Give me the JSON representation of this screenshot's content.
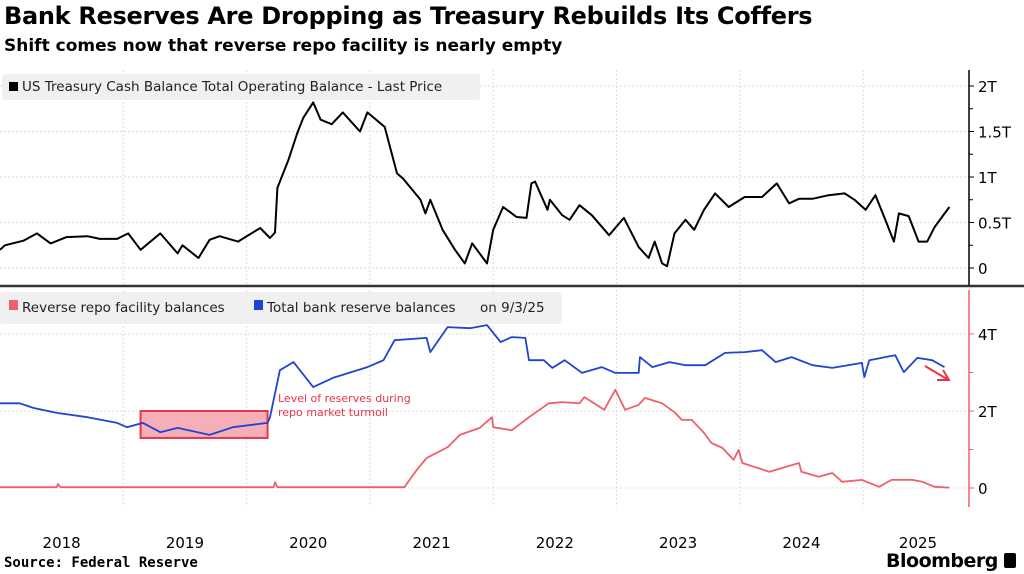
{
  "title": "Bank Reserves Are Dropping as Treasury Rebuilds Its Coffers",
  "subtitle": "Shift comes now that reverse repo facility is nearly empty",
  "source": "Source: Federal Reserve",
  "brand": "Bloomberg",
  "chart_data": [
    {
      "type": "line",
      "x_unit": "year",
      "xlim": [
        2018,
        2025.8
      ],
      "ylim": [
        -0.1,
        2.2
      ],
      "y_ticks": [
        0,
        0.5,
        1,
        1.5,
        2
      ],
      "y_tick_labels": [
        "0",
        "0.5T",
        "1T",
        "1.5T",
        "2T"
      ],
      "y_axis_side": "right",
      "grid": true,
      "legend_position": "top-left",
      "series": [
        {
          "name": "US Treasury Cash Balance Total Operating Balance - Last Price",
          "color": "#000000",
          "x": [
            2018.0,
            2018.04,
            2018.19,
            2018.3,
            2018.41,
            2018.54,
            2018.71,
            2018.81,
            2018.95,
            2019.04,
            2019.14,
            2019.3,
            2019.44,
            2019.48,
            2019.61,
            2019.7,
            2019.78,
            2019.93,
            2020.11,
            2020.19,
            2020.23,
            2020.25,
            2020.34,
            2020.41,
            2020.46,
            2020.54,
            2020.6,
            2020.69,
            2020.78,
            2020.92,
            2020.98,
            2021.12,
            2021.22,
            2021.27,
            2021.41,
            2021.45,
            2021.49,
            2021.59,
            2021.69,
            2021.77,
            2021.83,
            2021.95,
            2022.0,
            2022.08,
            2022.19,
            2022.27,
            2022.31,
            2022.34,
            2022.44,
            2022.46,
            2022.56,
            2022.62,
            2022.7,
            2022.8,
            2022.94,
            2023.06,
            2023.18,
            2023.26,
            2023.31,
            2023.37,
            2023.41,
            2023.47,
            2023.56,
            2023.63,
            2023.71,
            2023.8,
            2023.91,
            2024.04,
            2024.18,
            2024.3,
            2024.4,
            2024.48,
            2024.59,
            2024.72,
            2024.85,
            2024.93,
            2025.02,
            2025.1,
            2025.18,
            2025.25,
            2025.29,
            2025.37,
            2025.45,
            2025.52,
            2025.58,
            2025.64,
            2025.7
          ],
          "y": [
            0.2,
            0.25,
            0.3,
            0.38,
            0.27,
            0.34,
            0.35,
            0.32,
            0.32,
            0.38,
            0.2,
            0.38,
            0.16,
            0.25,
            0.11,
            0.31,
            0.35,
            0.29,
            0.44,
            0.33,
            0.39,
            0.88,
            1.19,
            1.48,
            1.65,
            1.82,
            1.63,
            1.58,
            1.71,
            1.5,
            1.71,
            1.55,
            1.04,
            0.98,
            0.75,
            0.6,
            0.75,
            0.42,
            0.2,
            0.05,
            0.27,
            0.05,
            0.42,
            0.67,
            0.56,
            0.55,
            0.93,
            0.95,
            0.64,
            0.75,
            0.58,
            0.53,
            0.69,
            0.58,
            0.36,
            0.55,
            0.23,
            0.11,
            0.29,
            0.05,
            0.02,
            0.38,
            0.53,
            0.42,
            0.64,
            0.82,
            0.67,
            0.78,
            0.78,
            0.93,
            0.71,
            0.76,
            0.76,
            0.8,
            0.82,
            0.75,
            0.64,
            0.8,
            0.53,
            0.29,
            0.6,
            0.57,
            0.29,
            0.29,
            0.45,
            0.56,
            0.67
          ]
        }
      ]
    },
    {
      "type": "line",
      "x_unit": "year",
      "xlim": [
        2018,
        2025.8
      ],
      "ylim": [
        -0.5,
        5.0
      ],
      "y_ticks": [
        0,
        2,
        4
      ],
      "y_tick_labels": [
        "0",
        "2T",
        "4T"
      ],
      "y_axis_side": "right",
      "grid": true,
      "legend_position": "top-left",
      "legend_suffix": "on 9/3/25",
      "x_tick_labels": [
        "2018",
        "2019",
        "2020",
        "2021",
        "2022",
        "2023",
        "2024",
        "2025"
      ],
      "series": [
        {
          "name": "Reverse repo facility balances",
          "color": "#f0606a",
          "x": [
            2018.0,
            2018.46,
            2018.47,
            2018.49,
            2020.22,
            2020.23,
            2020.25,
            2021.28,
            2021.38,
            2021.46,
            2021.63,
            2021.73,
            2021.89,
            2021.99,
            2022.0,
            2022.15,
            2022.29,
            2022.45,
            2022.56,
            2022.7,
            2022.74,
            2022.9,
            2022.99,
            2023.07,
            2023.18,
            2023.23,
            2023.37,
            2023.47,
            2023.53,
            2023.61,
            2023.71,
            2023.77,
            2023.86,
            2023.95,
            2023.99,
            2024.02,
            2024.24,
            2024.48,
            2024.5,
            2024.64,
            2024.75,
            2024.83,
            2024.99,
            2025.13,
            2025.23,
            2025.4,
            2025.48,
            2025.58,
            2025.7
          ],
          "y": [
            0.02,
            0.02,
            0.1,
            0.02,
            0.02,
            0.15,
            0.02,
            0.02,
            0.47,
            0.78,
            1.06,
            1.38,
            1.56,
            1.84,
            1.58,
            1.5,
            1.84,
            2.2,
            2.23,
            2.2,
            2.36,
            2.03,
            2.55,
            2.03,
            2.16,
            2.34,
            2.2,
            1.97,
            1.77,
            1.77,
            1.43,
            1.17,
            1.04,
            0.73,
            0.99,
            0.65,
            0.42,
            0.65,
            0.42,
            0.29,
            0.39,
            0.16,
            0.21,
            0.03,
            0.21,
            0.21,
            0.16,
            0.03,
            0.01
          ]
        },
        {
          "name": "Total bank reserve balances",
          "color": "#1f45d0",
          "x": [
            2018.0,
            2018.16,
            2018.27,
            2018.46,
            2018.71,
            2018.95,
            2019.03,
            2019.16,
            2019.3,
            2019.44,
            2019.7,
            2019.89,
            2020.17,
            2020.19,
            2020.27,
            2020.38,
            2020.54,
            2020.7,
            2020.98,
            2021.11,
            2021.2,
            2021.46,
            2021.49,
            2021.63,
            2021.81,
            2021.95,
            2022.06,
            2022.15,
            2022.26,
            2022.29,
            2022.41,
            2022.48,
            2022.58,
            2022.72,
            2022.88,
            2022.99,
            2023.18,
            2023.19,
            2023.29,
            2023.43,
            2023.56,
            2023.72,
            2023.88,
            2024.04,
            2024.18,
            2024.29,
            2024.42,
            2024.59,
            2024.75,
            2024.99,
            2025.01,
            2025.05,
            2025.18,
            2025.26,
            2025.33,
            2025.44,
            2025.56,
            2025.66
          ],
          "y": [
            2.2,
            2.2,
            2.08,
            1.95,
            1.84,
            1.69,
            1.58,
            1.69,
            1.45,
            1.56,
            1.38,
            1.58,
            1.69,
            1.84,
            3.06,
            3.27,
            2.62,
            2.86,
            3.14,
            3.32,
            3.84,
            3.9,
            3.53,
            4.18,
            4.15,
            4.23,
            3.79,
            3.92,
            3.9,
            3.32,
            3.32,
            3.12,
            3.32,
            2.99,
            3.14,
            2.99,
            2.99,
            3.4,
            3.14,
            3.27,
            3.19,
            3.19,
            3.51,
            3.53,
            3.58,
            3.27,
            3.4,
            3.19,
            3.12,
            3.25,
            2.88,
            3.32,
            3.4,
            3.45,
            3.01,
            3.38,
            3.32,
            3.14
          ]
        }
      ],
      "annotation": {
        "text_line1": "Level of reserves during",
        "text_line2": "repo market turmoil",
        "color": "#e8344a",
        "box_x": [
          2019.14,
          2020.17
        ],
        "box_y": [
          1.3,
          2.0
        ],
        "arrow_color": "#e8344a"
      }
    }
  ]
}
